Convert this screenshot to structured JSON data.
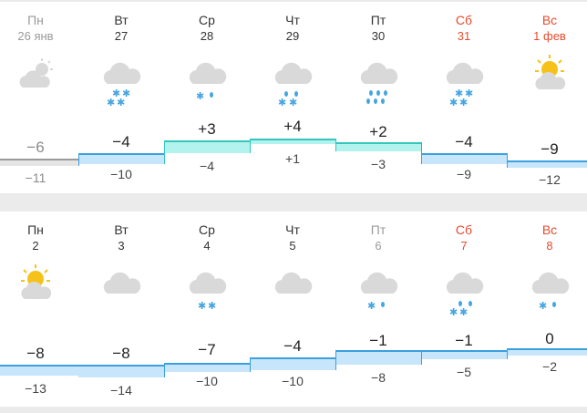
{
  "weeks": [
    {
      "days": [
        {
          "name": "Пн",
          "date": "26 янв",
          "max": "−6",
          "min": "−11",
          "icon": "cloud-sun-icon"
        },
        {
          "name": "Вт",
          "date": "27",
          "max": "−4",
          "min": "−10",
          "icon": "cloud-snow-icon"
        },
        {
          "name": "Ср",
          "date": "28",
          "max": "+3",
          "min": "−4",
          "icon": "cloud-rain-icon"
        },
        {
          "name": "Чт",
          "date": "29",
          "max": "+4",
          "min": "+1",
          "icon": "cloud-sleet-icon"
        },
        {
          "name": "Пт",
          "date": "30",
          "max": "+2",
          "min": "−3",
          "icon": "cloud-heavy-rain-icon"
        },
        {
          "name": "Сб",
          "date": "31",
          "max": "−4",
          "min": "−9",
          "icon": "cloud-snow-icon"
        },
        {
          "name": "Вс",
          "date": "1 фев",
          "max": "−9",
          "min": "−12",
          "icon": "sun-cloud-icon"
        }
      ]
    },
    {
      "days": [
        {
          "name": "Пн",
          "date": "2",
          "max": "−8",
          "min": "−13",
          "icon": "sun-cloud-icon"
        },
        {
          "name": "Вт",
          "date": "3",
          "max": "−8",
          "min": "−14",
          "icon": "cloud-icon"
        },
        {
          "name": "Ср",
          "date": "4",
          "max": "−7",
          "min": "−10",
          "icon": "cloud-snow-icon"
        },
        {
          "name": "Чт",
          "date": "5",
          "max": "−4",
          "min": "−10",
          "icon": "cloud-icon"
        },
        {
          "name": "Пт",
          "date": "6",
          "max": "−1",
          "min": "−8",
          "icon": "cloud-sleet-icon"
        },
        {
          "name": "Сб",
          "date": "7",
          "max": "−1",
          "min": "−5",
          "icon": "cloud-sleet-icon"
        },
        {
          "name": "Вс",
          "date": "8",
          "max": "0",
          "min": "−2",
          "icon": "cloud-rain-icon"
        }
      ]
    }
  ],
  "colors": {
    "weekend_text": "#e94a2c",
    "cold_fill": "#c7e6fb",
    "cold_line": "#3aa0de",
    "warm_fill": "#b2f3ee",
    "warm_line": "#34c5bd",
    "past_fill": "#e5e5e5",
    "past_line": "#9a9a9a",
    "sun": "#f6c21a",
    "cloud": "#d9d9d9",
    "precip": "#45a5e0"
  }
}
